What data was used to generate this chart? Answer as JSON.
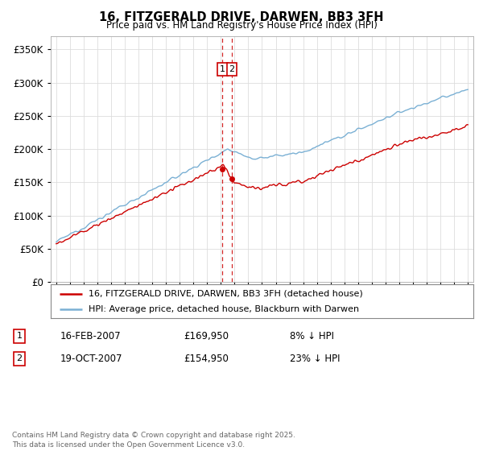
{
  "title": "16, FITZGERALD DRIVE, DARWEN, BB3 3FH",
  "subtitle": "Price paid vs. HM Land Registry's House Price Index (HPI)",
  "legend_line1": "16, FITZGERALD DRIVE, DARWEN, BB3 3FH (detached house)",
  "legend_line2": "HPI: Average price, detached house, Blackburn with Darwen",
  "annotation_footer": "Contains HM Land Registry data © Crown copyright and database right 2025.\nThis data is licensed under the Open Government Licence v3.0.",
  "sale1_label": "1",
  "sale1_date": "16-FEB-2007",
  "sale1_price": "£169,950",
  "sale1_hpi": "8% ↓ HPI",
  "sale2_label": "2",
  "sale2_date": "19-OCT-2007",
  "sale2_price": "£154,950",
  "sale2_hpi": "23% ↓ HPI",
  "sale1_x": 2007.12,
  "sale2_x": 2007.8,
  "sale1_price_val": 169950,
  "sale2_price_val": 154950,
  "red_color": "#cc0000",
  "blue_color": "#7ab0d4",
  "vline_color": "#cc0000",
  "ylim": [
    0,
    370000
  ],
  "yticks": [
    0,
    50000,
    100000,
    150000,
    200000,
    250000,
    300000,
    350000
  ],
  "background_color": "#ffffff",
  "grid_color": "#dddddd",
  "xmin": 1995,
  "xmax": 2025
}
